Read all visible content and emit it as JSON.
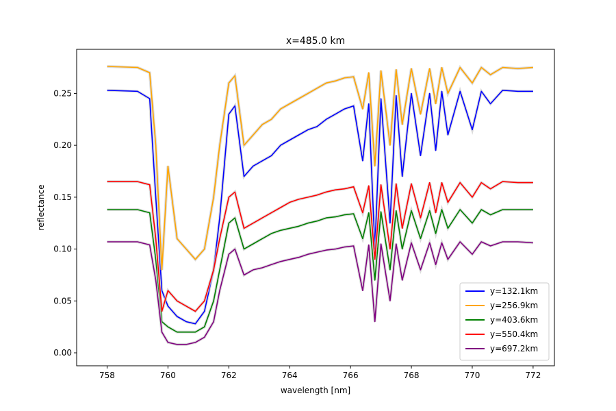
{
  "chart_data": {
    "type": "line",
    "title": "x=485.0 km",
    "xlabel": "wavelength [nm]",
    "ylabel": "reflectance",
    "xlim": [
      757.0,
      772.7
    ],
    "ylim": [
      -0.0125,
      0.2925
    ],
    "xticks": [
      758,
      760,
      762,
      764,
      766,
      768,
      770,
      772
    ],
    "yticks": [
      0.0,
      0.05,
      0.1,
      0.15,
      0.2,
      0.25
    ],
    "ytick_labels": [
      "0.00",
      "0.05",
      "0.10",
      "0.15",
      "0.20",
      "0.25"
    ],
    "grid": false,
    "legend_position": "lower-right",
    "band_color": "#cccccc",
    "series": [
      {
        "name": "y=132.1km",
        "color": "#0000ff",
        "x": [
          758.0,
          759.0,
          759.4,
          759.6,
          759.8,
          760.0,
          760.3,
          760.6,
          760.9,
          761.2,
          761.5,
          761.7,
          762.0,
          762.2,
          762.5,
          762.8,
          763.1,
          763.4,
          763.7,
          764.0,
          764.3,
          764.6,
          764.9,
          765.2,
          765.5,
          765.8,
          766.1,
          766.4,
          766.6,
          766.8,
          767.0,
          767.3,
          767.5,
          767.7,
          768.0,
          768.3,
          768.6,
          768.8,
          769.0,
          769.2,
          769.6,
          770.0,
          770.3,
          770.6,
          771.0,
          771.5,
          772.0
        ],
        "y": [
          0.253,
          0.252,
          0.245,
          0.15,
          0.06,
          0.045,
          0.035,
          0.03,
          0.028,
          0.04,
          0.08,
          0.13,
          0.23,
          0.238,
          0.17,
          0.18,
          0.185,
          0.19,
          0.2,
          0.205,
          0.21,
          0.215,
          0.218,
          0.225,
          0.23,
          0.235,
          0.238,
          0.185,
          0.24,
          0.1,
          0.245,
          0.125,
          0.248,
          0.17,
          0.25,
          0.19,
          0.25,
          0.195,
          0.252,
          0.21,
          0.252,
          0.215,
          0.252,
          0.24,
          0.253,
          0.252,
          0.252
        ]
      },
      {
        "name": "y=256.9km",
        "color": "#ffa500",
        "x": [
          758.0,
          759.0,
          759.4,
          759.6,
          759.8,
          760.0,
          760.3,
          760.6,
          760.9,
          761.2,
          761.5,
          761.7,
          762.0,
          762.2,
          762.5,
          762.8,
          763.1,
          763.4,
          763.7,
          764.0,
          764.3,
          764.6,
          764.9,
          765.2,
          765.5,
          765.8,
          766.1,
          766.4,
          766.6,
          766.8,
          767.0,
          767.3,
          767.5,
          767.7,
          768.0,
          768.3,
          768.6,
          768.8,
          769.0,
          769.2,
          769.6,
          770.0,
          770.3,
          770.6,
          771.0,
          771.5,
          772.0
        ],
        "y": [
          0.276,
          0.275,
          0.27,
          0.2,
          0.08,
          0.18,
          0.11,
          0.1,
          0.09,
          0.1,
          0.15,
          0.2,
          0.26,
          0.267,
          0.2,
          0.21,
          0.22,
          0.225,
          0.235,
          0.24,
          0.245,
          0.25,
          0.255,
          0.26,
          0.262,
          0.265,
          0.266,
          0.235,
          0.27,
          0.18,
          0.272,
          0.2,
          0.273,
          0.22,
          0.274,
          0.23,
          0.274,
          0.24,
          0.275,
          0.25,
          0.275,
          0.26,
          0.275,
          0.268,
          0.275,
          0.274,
          0.275
        ]
      },
      {
        "name": "y=403.6km",
        "color": "#008000",
        "x": [
          758.0,
          759.0,
          759.4,
          759.6,
          759.8,
          760.0,
          760.3,
          760.6,
          760.9,
          761.2,
          761.5,
          761.7,
          762.0,
          762.2,
          762.5,
          762.8,
          763.1,
          763.4,
          763.7,
          764.0,
          764.3,
          764.6,
          764.9,
          765.2,
          765.5,
          765.8,
          766.1,
          766.4,
          766.6,
          766.8,
          767.0,
          767.3,
          767.5,
          767.7,
          768.0,
          768.3,
          768.6,
          768.8,
          769.0,
          769.2,
          769.6,
          770.0,
          770.3,
          770.6,
          771.0,
          771.5,
          772.0
        ],
        "y": [
          0.138,
          0.138,
          0.135,
          0.09,
          0.03,
          0.025,
          0.02,
          0.02,
          0.02,
          0.025,
          0.05,
          0.08,
          0.125,
          0.13,
          0.1,
          0.105,
          0.11,
          0.115,
          0.118,
          0.12,
          0.122,
          0.125,
          0.127,
          0.13,
          0.131,
          0.133,
          0.134,
          0.11,
          0.135,
          0.07,
          0.136,
          0.08,
          0.137,
          0.1,
          0.137,
          0.11,
          0.137,
          0.115,
          0.138,
          0.12,
          0.138,
          0.125,
          0.138,
          0.133,
          0.138,
          0.138,
          0.138
        ]
      },
      {
        "name": "y=550.4km",
        "color": "#ff0000",
        "x": [
          758.0,
          759.0,
          759.4,
          759.6,
          759.8,
          760.0,
          760.3,
          760.6,
          760.9,
          761.2,
          761.5,
          761.7,
          762.0,
          762.2,
          762.5,
          762.8,
          763.1,
          763.4,
          763.7,
          764.0,
          764.3,
          764.6,
          764.9,
          765.2,
          765.5,
          765.8,
          766.1,
          766.4,
          766.6,
          766.8,
          767.0,
          767.3,
          767.5,
          767.7,
          768.0,
          768.3,
          768.6,
          768.8,
          769.0,
          769.2,
          769.6,
          770.0,
          770.3,
          770.6,
          771.0,
          771.5,
          772.0
        ],
        "y": [
          0.165,
          0.165,
          0.162,
          0.11,
          0.04,
          0.06,
          0.05,
          0.045,
          0.04,
          0.05,
          0.08,
          0.11,
          0.15,
          0.155,
          0.12,
          0.125,
          0.13,
          0.135,
          0.14,
          0.145,
          0.148,
          0.15,
          0.152,
          0.155,
          0.157,
          0.158,
          0.16,
          0.135,
          0.161,
          0.09,
          0.162,
          0.1,
          0.163,
          0.12,
          0.163,
          0.13,
          0.164,
          0.135,
          0.164,
          0.145,
          0.164,
          0.15,
          0.164,
          0.158,
          0.165,
          0.164,
          0.164
        ]
      },
      {
        "name": "y=697.2km",
        "color": "#800080",
        "x": [
          758.0,
          759.0,
          759.4,
          759.6,
          759.8,
          760.0,
          760.3,
          760.6,
          760.9,
          761.2,
          761.5,
          761.7,
          762.0,
          762.2,
          762.5,
          762.8,
          763.1,
          763.4,
          763.7,
          764.0,
          764.3,
          764.6,
          764.9,
          765.2,
          765.5,
          765.8,
          766.1,
          766.4,
          766.6,
          766.8,
          767.0,
          767.3,
          767.5,
          767.7,
          768.0,
          768.3,
          768.6,
          768.8,
          769.0,
          769.2,
          769.6,
          770.0,
          770.3,
          770.6,
          771.0,
          771.5,
          772.0
        ],
        "y": [
          0.107,
          0.107,
          0.104,
          0.07,
          0.02,
          0.01,
          0.008,
          0.008,
          0.01,
          0.015,
          0.03,
          0.06,
          0.095,
          0.1,
          0.075,
          0.08,
          0.082,
          0.085,
          0.088,
          0.09,
          0.092,
          0.095,
          0.097,
          0.099,
          0.1,
          0.102,
          0.103,
          0.06,
          0.104,
          0.03,
          0.105,
          0.05,
          0.105,
          0.07,
          0.106,
          0.08,
          0.106,
          0.085,
          0.106,
          0.09,
          0.107,
          0.095,
          0.107,
          0.103,
          0.107,
          0.107,
          0.106
        ]
      }
    ]
  }
}
